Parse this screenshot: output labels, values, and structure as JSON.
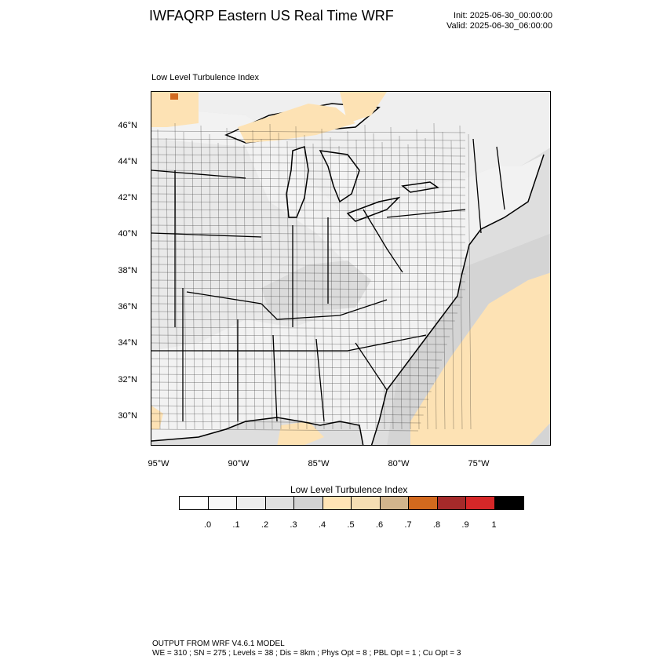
{
  "header": {
    "title": "IWFAQRP Eastern US Real Time WRF",
    "init": "Init: 2025-06-30_00:00:00",
    "valid": "Valid: 2025-06-30_06:00:00"
  },
  "map": {
    "field_label": "Low Level Turbulence Index",
    "lat_labels": [
      "46°N",
      "44°N",
      "42°N",
      "40°N",
      "38°N",
      "36°N",
      "34°N",
      "32°N",
      "30°N"
    ],
    "lon_labels": [
      "95°W",
      "90°W",
      "85°W",
      "80°W",
      "75°W"
    ],
    "colors": {
      "land_low": "#f2f2f2",
      "land_mid": "#e0e0e0",
      "water": "#dcdcdc",
      "lake": "#f4f4f4",
      "tan": "#fde2b4",
      "orange": "#d2691e",
      "borders": "#000000"
    }
  },
  "legend": {
    "title": "Low Level Turbulence Index",
    "colors": [
      "#ffffff",
      "#f7f7f7",
      "#ededed",
      "#e0e0e0",
      "#d3d3d3",
      "#ffe4b5",
      "#f5deb3",
      "#d2b48c",
      "#d2691e",
      "#a52a2a",
      "#d62728",
      "#000000"
    ],
    "ticks": [
      ".0",
      ".1",
      ".2",
      ".3",
      ".4",
      ".5",
      ".6",
      ".7",
      ".8",
      ".9",
      "1"
    ]
  },
  "footer": {
    "line1": "OUTPUT FROM WRF V4.6.1 MODEL",
    "line2": "WE = 310 ; SN = 275 ; Levels = 38 ; Dis = 8km ; Phys Opt = 8 ; PBL Opt = 1 ; Cu Opt = 3"
  }
}
